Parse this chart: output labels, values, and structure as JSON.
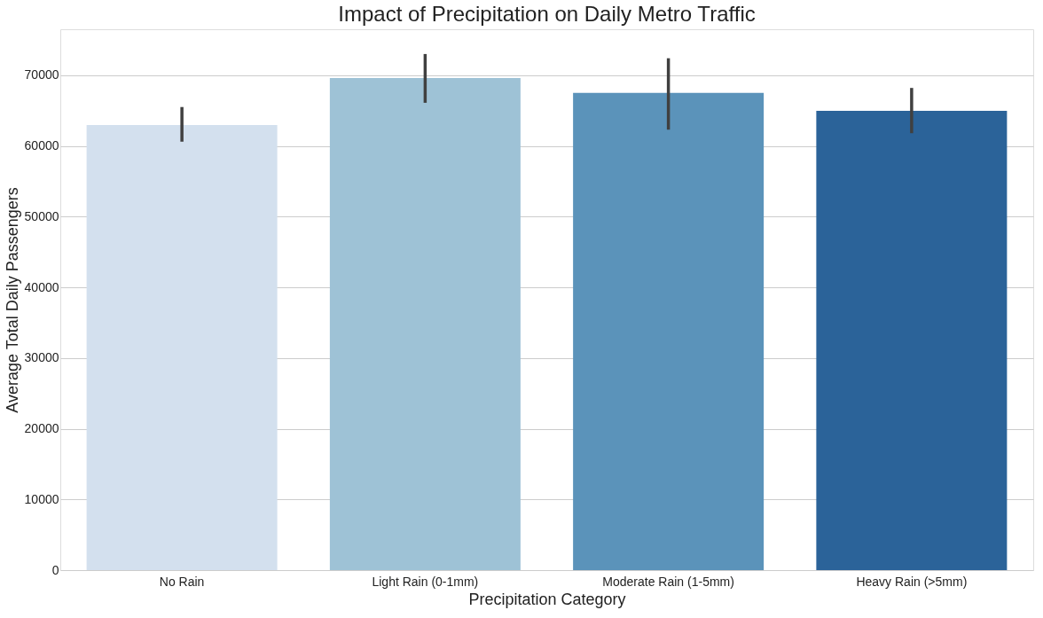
{
  "chart_data": {
    "type": "bar",
    "title": "Impact of Precipitation on Daily Metro Traffic",
    "xlabel": "Precipitation Category",
    "ylabel": "Average Total Daily Passengers",
    "categories": [
      "No Rain",
      "Light Rain (0-1mm)",
      "Moderate Rain (1-5mm)",
      "Heavy Rain (>5mm)"
    ],
    "values": [
      62950,
      69600,
      67500,
      64950
    ],
    "colors": [
      "#d3e0ee",
      "#9ec2d6",
      "#5b93ba",
      "#2b6399"
    ],
    "errors": [
      [
        60600,
        65500
      ],
      [
        66100,
        73000
      ],
      [
        62300,
        72400
      ],
      [
        61800,
        68200
      ]
    ],
    "ylim": [
      0,
      76500
    ],
    "yticks": [
      0,
      10000,
      20000,
      30000,
      40000,
      50000,
      60000,
      70000
    ],
    "grid": "y"
  }
}
